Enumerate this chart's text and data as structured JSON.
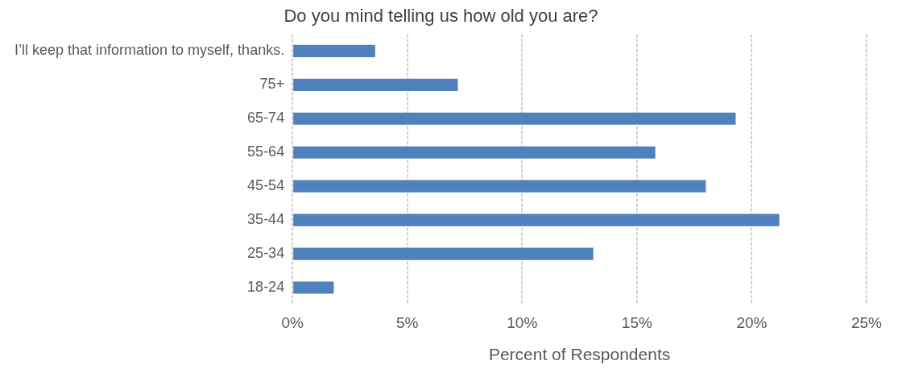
{
  "chart_data": {
    "type": "bar",
    "orientation": "horizontal",
    "title": "Do you mind telling us how old you are?",
    "xlabel": "Percent of Respondents",
    "categories": [
      "I’ll keep that information to myself, thanks.",
      "75+",
      "65-74",
      "55-64",
      "45-54",
      "35-44",
      "25-34",
      "18-24"
    ],
    "values": [
      3.6,
      7.2,
      19.3,
      15.8,
      18.0,
      21.2,
      13.1,
      1.8
    ],
    "color": "#4f81bd",
    "xlim": [
      0,
      25
    ],
    "xticks": [
      {
        "value": 0,
        "label": "0%"
      },
      {
        "value": 5,
        "label": "5%"
      },
      {
        "value": 10,
        "label": "10%"
      },
      {
        "value": 15,
        "label": "15%"
      },
      {
        "value": 20,
        "label": "20%"
      },
      {
        "value": 25,
        "label": "25%"
      }
    ],
    "grid": "x",
    "legend": false
  }
}
